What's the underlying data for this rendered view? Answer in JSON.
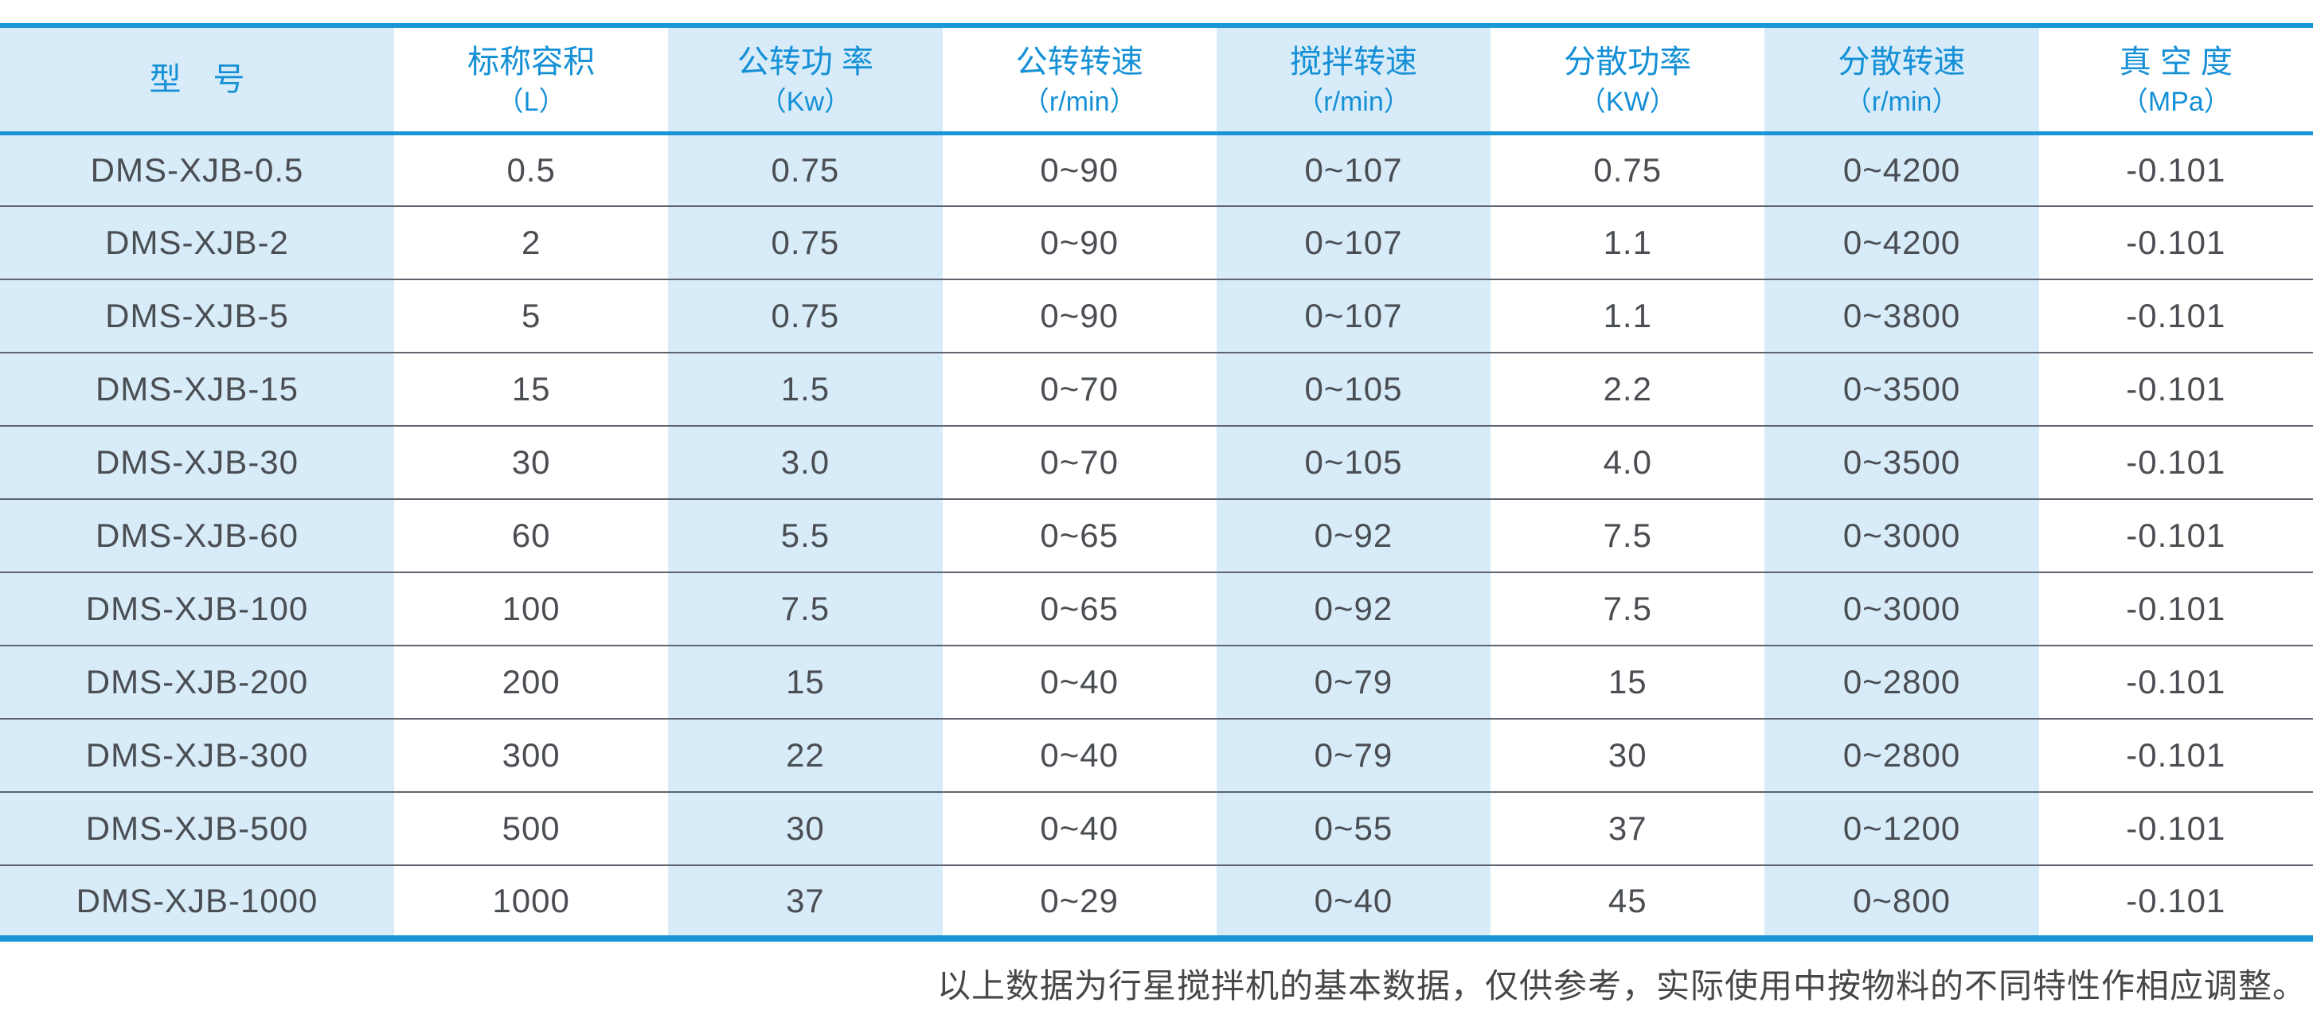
{
  "table": {
    "headers": [
      {
        "title": "型　号",
        "unit": ""
      },
      {
        "title": "标称容积",
        "unit": "（L）"
      },
      {
        "title": "公转功 率",
        "unit": "（Kw）"
      },
      {
        "title": "公转转速",
        "unit": "（r/min）"
      },
      {
        "title": "搅拌转速",
        "unit": "（r/min）"
      },
      {
        "title": "分散功率",
        "unit": "（KW）"
      },
      {
        "title": "分散转速",
        "unit": "（r/min）"
      },
      {
        "title": "真 空 度",
        "unit": "（MPa）"
      }
    ],
    "rows": [
      {
        "cells": [
          "DMS-XJB-0.5",
          "0.5",
          "0.75",
          "0~90",
          "0~107",
          "0.75",
          "0~4200",
          "-0.101"
        ]
      },
      {
        "cells": [
          "DMS-XJB-2",
          "2",
          "0.75",
          "0~90",
          "0~107",
          "1.1",
          "0~4200",
          "-0.101"
        ]
      },
      {
        "cells": [
          "DMS-XJB-5",
          "5",
          "0.75",
          "0~90",
          "0~107",
          "1.1",
          "0~3800",
          "-0.101"
        ]
      },
      {
        "cells": [
          "DMS-XJB-15",
          "15",
          "1.5",
          "0~70",
          "0~105",
          "2.2",
          "0~3500",
          "-0.101"
        ]
      },
      {
        "cells": [
          "DMS-XJB-30",
          "30",
          "3.0",
          "0~70",
          "0~105",
          "4.0",
          "0~3500",
          "-0.101"
        ]
      },
      {
        "cells": [
          "DMS-XJB-60",
          "60",
          "5.5",
          "0~65",
          "0~92",
          "7.5",
          "0~3000",
          "-0.101"
        ]
      },
      {
        "cells": [
          "DMS-XJB-100",
          "100",
          "7.5",
          "0~65",
          "0~92",
          "7.5",
          "0~3000",
          "-0.101"
        ]
      },
      {
        "cells": [
          "DMS-XJB-200",
          "200",
          "15",
          "0~40",
          "0~79",
          "15",
          "0~2800",
          "-0.101"
        ]
      },
      {
        "cells": [
          "DMS-XJB-300",
          "300",
          "22",
          "0~40",
          "0~79",
          "30",
          "0~2800",
          "-0.101"
        ]
      },
      {
        "cells": [
          "DMS-XJB-500",
          "500",
          "30",
          "0~40",
          "0~55",
          "37",
          "0~1200",
          "-0.101"
        ]
      },
      {
        "cells": [
          "DMS-XJB-1000",
          "1000",
          "37",
          "0~29",
          "0~40",
          "45",
          "0~800",
          "-0.101"
        ]
      }
    ]
  },
  "footer": {
    "note": "以上数据为行星搅拌机的基本数据，仅供参考，实际使用中按物料的不同特性作相应调整。"
  },
  "colors": {
    "accent_blue": "#1a96d6",
    "stripe_blue": "#d7ebf9",
    "body_text": "#4a4e53",
    "row_separator": "#5d646d"
  }
}
